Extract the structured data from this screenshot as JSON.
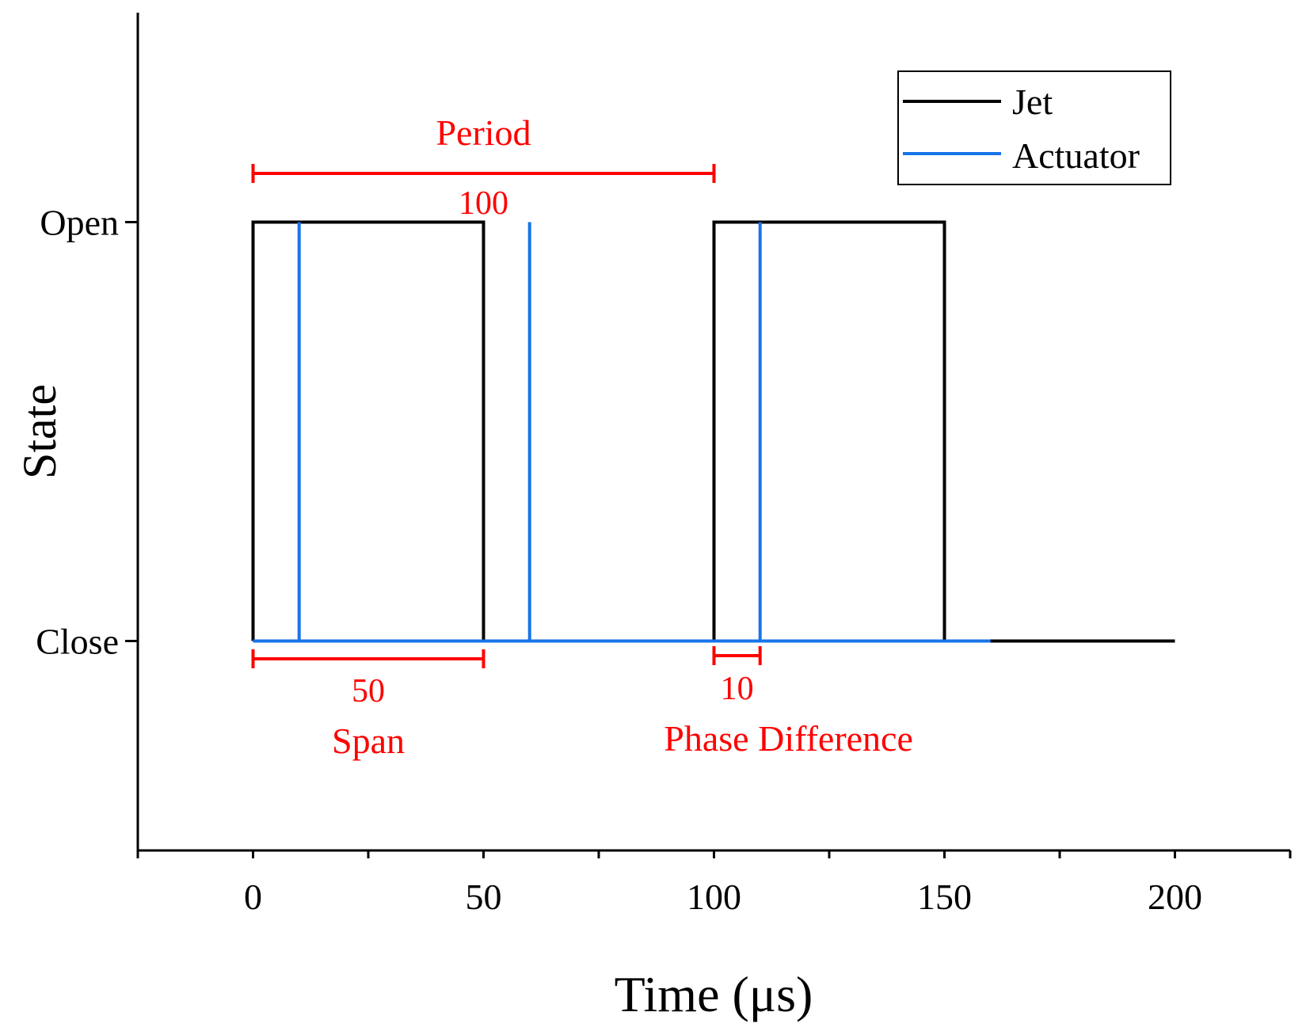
{
  "chart_data": {
    "type": "line",
    "title": "",
    "xlabel": "Time (μs)",
    "ylabel": "State",
    "xlim": [
      -25,
      225
    ],
    "ylim": [
      -0.5,
      1.5
    ],
    "x_ticks": [
      0,
      50,
      100,
      150,
      200
    ],
    "x_tick_labels": [
      "0",
      "50",
      "100",
      "150",
      "200"
    ],
    "y_ticks": [
      0,
      1
    ],
    "y_tick_labels": [
      "Close",
      "Open"
    ],
    "series": [
      {
        "name": "Jet",
        "color": "#000000",
        "x": [
          0,
          0,
          50,
          50,
          100,
          100,
          150,
          150,
          200
        ],
        "y": [
          0,
          1,
          1,
          0,
          0,
          1,
          1,
          0,
          0
        ]
      },
      {
        "name": "Actuator",
        "color": "#1874e8",
        "x": [
          0,
          10,
          10,
          10,
          60,
          60,
          60,
          110,
          110,
          110,
          160
        ],
        "y": [
          0,
          0,
          1,
          0,
          0,
          1,
          0,
          0,
          1,
          0,
          0
        ]
      }
    ],
    "legend": {
      "position": "top-right",
      "entries": [
        "Jet",
        "Actuator"
      ]
    },
    "annotations": {
      "color": "#ff0000",
      "period": {
        "from": 0,
        "to": 100,
        "label": "Period",
        "value": "100"
      },
      "span": {
        "from": 0,
        "to": 50,
        "label": "Span",
        "value": "50"
      },
      "phase": {
        "from": 100,
        "to": 110,
        "label": "Phase Difference",
        "value": "10"
      }
    }
  }
}
